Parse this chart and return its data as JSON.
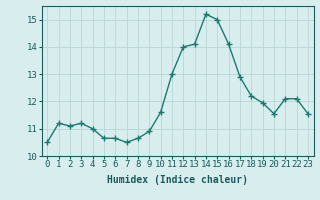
{
  "x": [
    0,
    1,
    2,
    3,
    4,
    5,
    6,
    7,
    8,
    9,
    10,
    11,
    12,
    13,
    14,
    15,
    16,
    17,
    18,
    19,
    20,
    21,
    22,
    23
  ],
  "y": [
    10.5,
    11.2,
    11.1,
    11.2,
    11.0,
    10.65,
    10.65,
    10.5,
    10.65,
    10.9,
    11.6,
    13.0,
    14.0,
    14.1,
    15.2,
    15.0,
    14.1,
    12.9,
    12.2,
    11.95,
    11.55,
    12.1,
    12.1,
    11.55
  ],
  "line_color": "#1a7a6e",
  "marker": "+",
  "marker_size": 4,
  "bg_color": "#d8eeee",
  "grid_color": "#b8d4d4",
  "xlabel": "Humidex (Indice chaleur)",
  "ylabel": "",
  "xlim": [
    -0.5,
    23.5
  ],
  "ylim": [
    10.0,
    15.5
  ],
  "yticks": [
    10,
    11,
    12,
    13,
    14,
    15
  ],
  "xtick_labels": [
    "0",
    "1",
    "2",
    "3",
    "4",
    "5",
    "6",
    "7",
    "8",
    "9",
    "10",
    "11",
    "12",
    "13",
    "14",
    "15",
    "16",
    "17",
    "18",
    "19",
    "20",
    "21",
    "22",
    "23"
  ],
  "font_color": "#1a5a5a",
  "label_fontsize": 7,
  "tick_fontsize": 6.5
}
